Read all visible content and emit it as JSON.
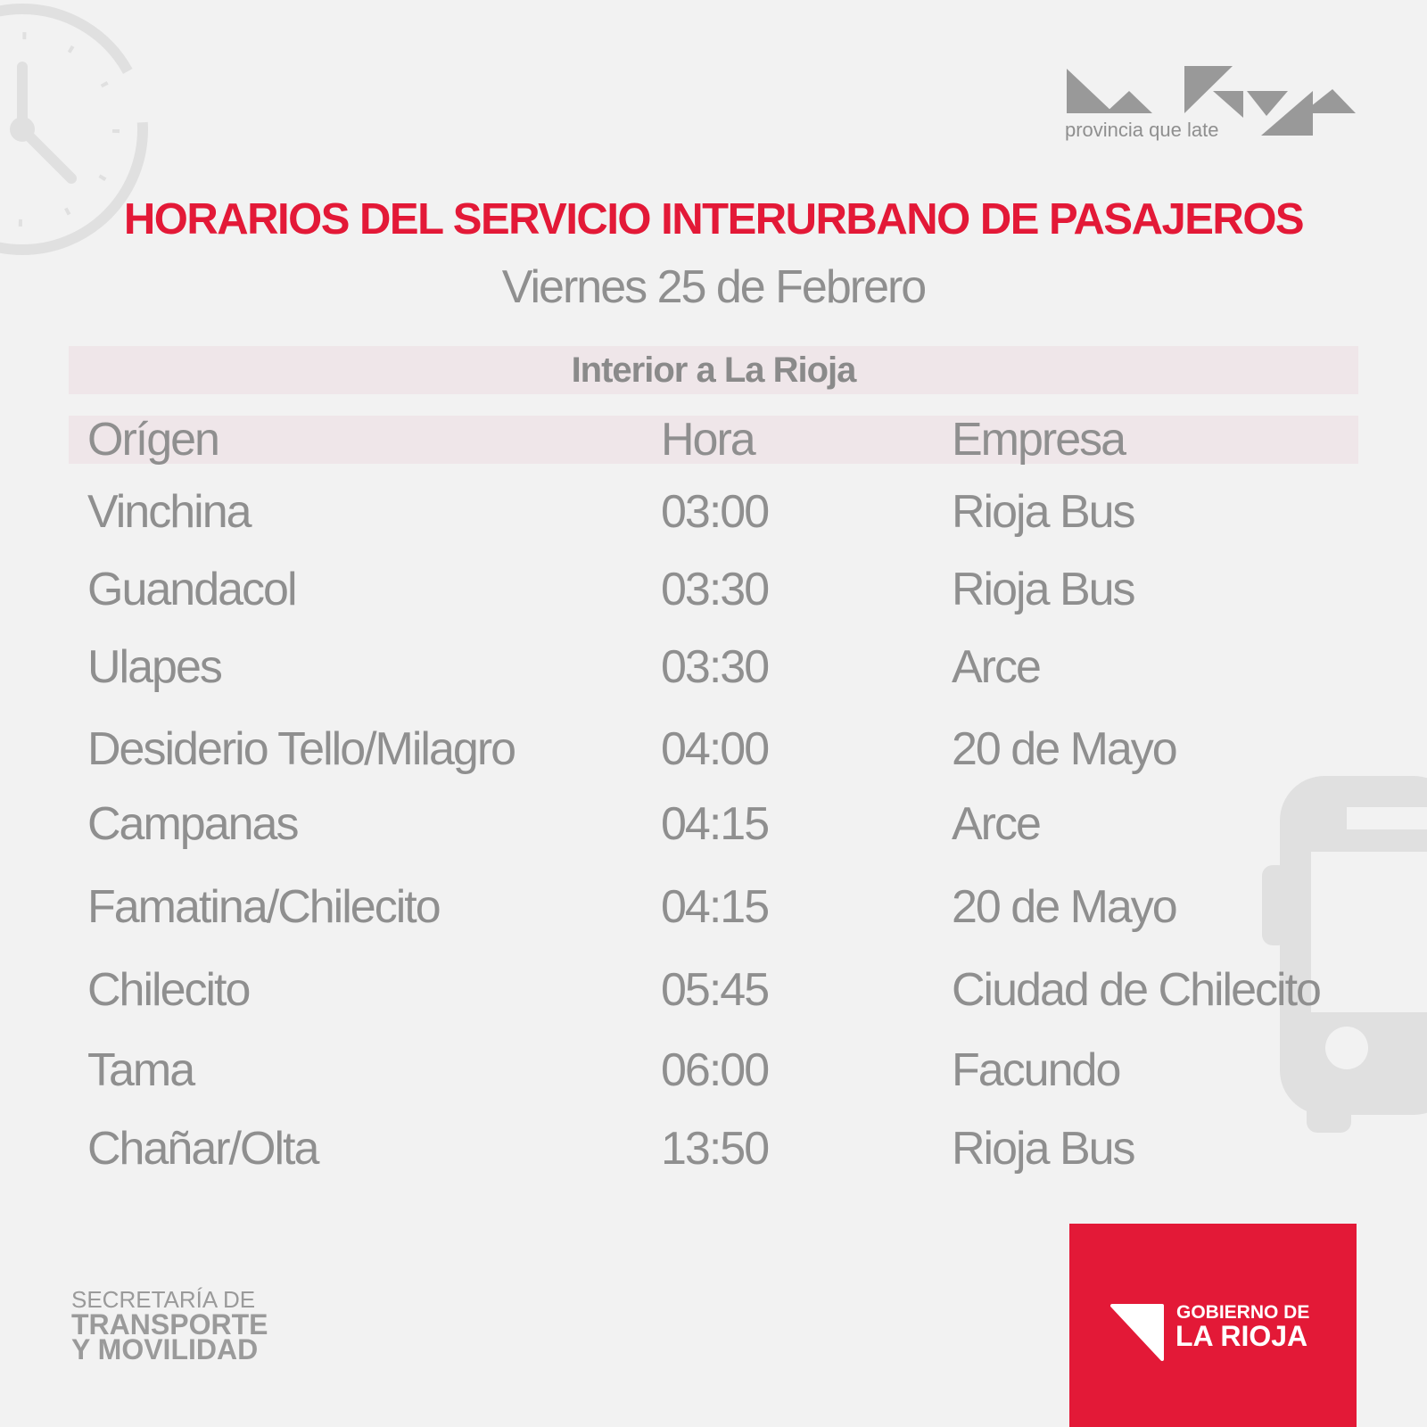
{
  "brand": {
    "logo_tagline": "provincia que late",
    "accent": "#e31937"
  },
  "title": "HORARIOS DEL SERVICIO INTERURBANO DE PASAJEROS",
  "subtitle": "Viernes 25 de Febrero",
  "section": "Interior a La Rioja",
  "columns": [
    "Orígen",
    "Hora",
    "Empresa"
  ],
  "rows": [
    [
      "Vinchina",
      "03:00",
      "Rioja Bus"
    ],
    [
      "Guandacol",
      "03:30",
      "Rioja Bus"
    ],
    [
      "Ulapes",
      "03:30",
      "Arce"
    ],
    [
      "Desiderio Tello/Milagro",
      "04:00",
      "20 de Mayo"
    ],
    [
      "Campanas",
      "04:15",
      "Arce"
    ],
    [
      "Famatina/Chilecito",
      "04:15",
      "20 de Mayo"
    ],
    [
      "Chilecito",
      "05:45",
      "Ciudad de Chilecito"
    ],
    [
      "Tama",
      "06:00",
      "Facundo"
    ],
    [
      "Chañar/Olta",
      "13:50",
      "Rioja Bus"
    ]
  ],
  "footer": {
    "secretaria": [
      "SECRETARÍA DE",
      "TRANSPORTE",
      "Y MOVILIDAD"
    ],
    "gobierno": [
      "GOBIERNO DE",
      "LA RIOJA"
    ]
  },
  "icons": [
    "clock-icon",
    "bus-icon"
  ]
}
